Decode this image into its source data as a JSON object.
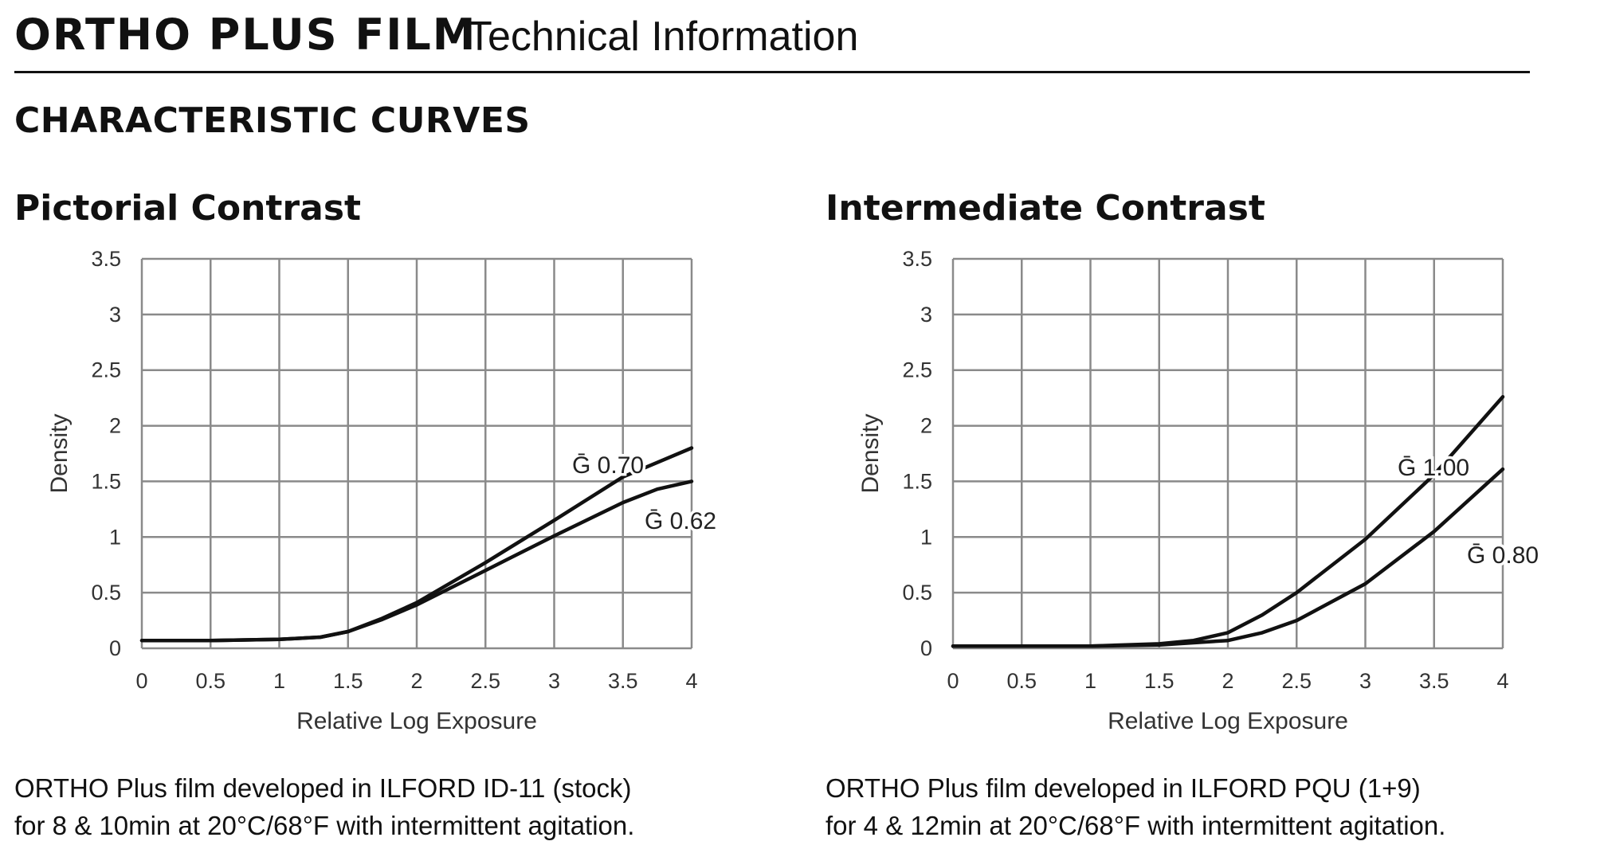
{
  "header": {
    "brand": "ORTHO PLUS FILM",
    "subtitle": "Technical Information"
  },
  "section_title": "CHARACTERISTIC CURVES",
  "chart_data": [
    {
      "type": "line",
      "title": "Pictorial Contrast",
      "xlabel": "Relative Log Exposure",
      "ylabel": "Density",
      "xlim": [
        0,
        4
      ],
      "ylim": [
        0,
        3.5
      ],
      "xticks": [
        "0",
        "0.5",
        "1",
        "1.5",
        "2",
        "2.5",
        "3",
        "3.5",
        "4"
      ],
      "yticks": [
        "0",
        "0.5",
        "1",
        "1.5",
        "2",
        "2.5",
        "3",
        "3.5"
      ],
      "grid": true,
      "line_color": "#111111",
      "series": [
        {
          "name": "Ḡ 0.70",
          "x": [
            0,
            0.5,
            1.0,
            1.3,
            1.5,
            1.75,
            2.0,
            2.5,
            3.0,
            3.5,
            3.75,
            4.0
          ],
          "y": [
            0.07,
            0.07,
            0.08,
            0.1,
            0.15,
            0.27,
            0.41,
            0.77,
            1.15,
            1.54,
            1.67,
            1.8
          ]
        },
        {
          "name": "Ḡ 0.62",
          "x": [
            0,
            0.5,
            1.0,
            1.3,
            1.5,
            1.75,
            2.0,
            2.5,
            3.0,
            3.5,
            3.75,
            4.0
          ],
          "y": [
            0.07,
            0.07,
            0.08,
            0.1,
            0.15,
            0.26,
            0.39,
            0.7,
            1.01,
            1.31,
            1.43,
            1.5
          ]
        }
      ],
      "caption": [
        "ORTHO Plus film developed in ILFORD ID-11 (stock)",
        "for 8 & 10min at 20°C/68°F with intermittent agitation."
      ]
    },
    {
      "type": "line",
      "title": "Intermediate Contrast",
      "xlabel": "Relative Log Exposure",
      "ylabel": "Density",
      "xlim": [
        0,
        4
      ],
      "ylim": [
        0,
        3.5
      ],
      "xticks": [
        "0",
        "0.5",
        "1",
        "1.5",
        "2",
        "2.5",
        "3",
        "3.5",
        "4"
      ],
      "yticks": [
        "0",
        "0.5",
        "1",
        "1.5",
        "2",
        "2.5",
        "3",
        "3.5"
      ],
      "grid": true,
      "line_color": "#111111",
      "series": [
        {
          "name": "Ḡ 1.00",
          "x": [
            0,
            1.0,
            1.5,
            1.75,
            2.0,
            2.25,
            2.5,
            3.0,
            3.5,
            4.0
          ],
          "y": [
            0.02,
            0.02,
            0.04,
            0.07,
            0.14,
            0.3,
            0.5,
            0.98,
            1.56,
            2.26
          ]
        },
        {
          "name": "Ḡ 0.80",
          "x": [
            0,
            1.0,
            1.5,
            2.0,
            2.25,
            2.5,
            3.0,
            3.5,
            4.0
          ],
          "y": [
            0.02,
            0.02,
            0.03,
            0.07,
            0.14,
            0.25,
            0.58,
            1.05,
            1.61
          ]
        }
      ],
      "caption": [
        "ORTHO Plus film developed in ILFORD PQU (1+9)",
        "for 4 & 12min at 20°C/68°F with intermittent agitation."
      ]
    }
  ]
}
